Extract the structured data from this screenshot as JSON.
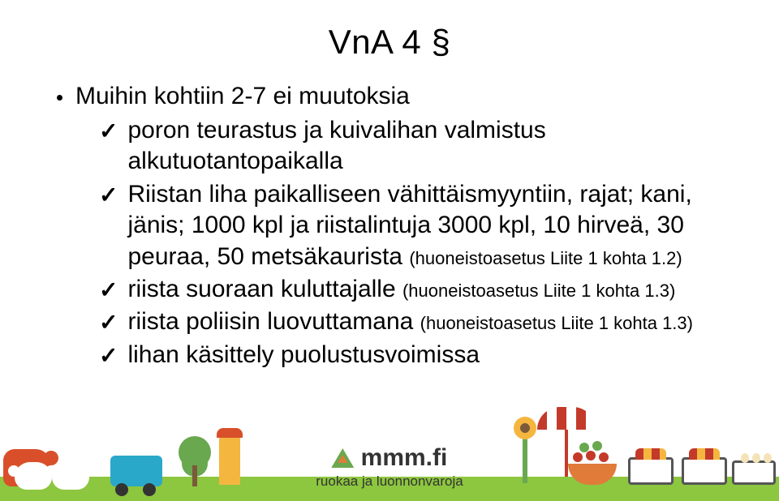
{
  "title": "VnA  4 §",
  "main_bullet": "Muihin kohtiin 2-7 ei muutoksia",
  "items": [
    {
      "text": "poron teurastus ja kuivalihan valmistus alkutuotantopaikalla",
      "small": ""
    },
    {
      "text": "Riistan liha  paikalliseen vähittäismyyntiin, rajat;  kani, jänis; 1000 kpl ja riistalintuja 3000 kpl, 10 hirveä, 30 peuraa, 50 metsäkaurista ",
      "small": "(huoneistoasetus Liite 1 kohta 1.2)"
    },
    {
      "text": "riista suoraan kuluttajalle ",
      "small": "(huoneistoasetus Liite 1 kohta 1.3)"
    },
    {
      "text": "riista poliisin luovuttamana ",
      "small": "(huoneistoasetus Liite 1 kohta 1.3)"
    },
    {
      "text": "lihan käsittely puolustusvoimissa",
      "small": ""
    }
  ],
  "logo": {
    "brand": "mmm.fi",
    "tagline": "ruokaa ja luonnonvaroja"
  },
  "colors": {
    "grass": "#8dc63f",
    "orange": "#e07b3a",
    "red": "#c43a2a",
    "yellow": "#f4b63f",
    "green": "#6aa84f",
    "blue": "#2aa8c9"
  }
}
